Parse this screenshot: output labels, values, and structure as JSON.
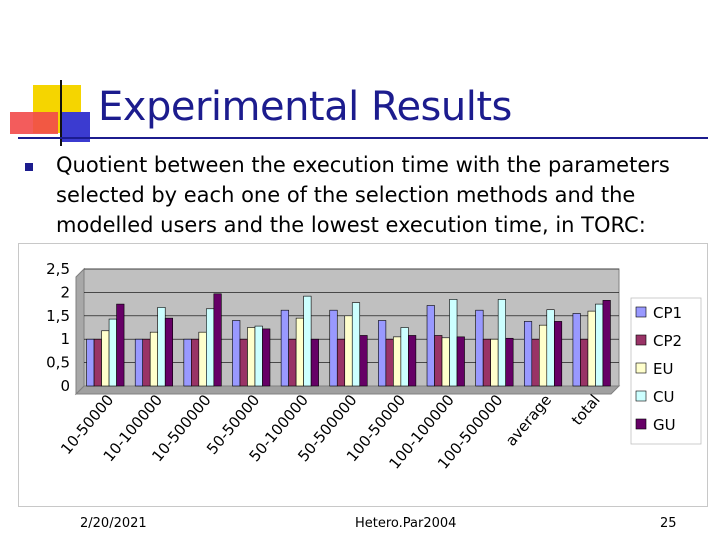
{
  "slide": {
    "title": "Experimental Results",
    "body": "Quotient between the execution time with the parameters selected by each one of the selection methods and the modelled users and the lowest execution time, in TORC:"
  },
  "footer": {
    "date": "2/20/2021",
    "center": "Hetero.Par2004",
    "page": "25"
  },
  "colors": {
    "title": "#1c1c8e",
    "plot_bg": "#c0c0c0",
    "CP1": "#9999ff",
    "CP2": "#993366",
    "EU": "#ffffcc",
    "CU": "#ccffff",
    "GU": "#660066"
  },
  "chart_data": {
    "type": "bar",
    "title": "",
    "xlabel": "",
    "ylabel": "",
    "ylim": [
      0,
      2.5
    ],
    "yticks": [
      "0",
      "0,5",
      "1",
      "1,5",
      "2",
      "2,5"
    ],
    "grid": true,
    "legend": "right",
    "categories": [
      "10-50000",
      "10-100000",
      "10-500000",
      "50-50000",
      "50-100000",
      "50-500000",
      "100-50000",
      "100-100000",
      "100-500000",
      "average",
      "total"
    ],
    "series": [
      {
        "name": "CP1",
        "values": [
          1.0,
          1.0,
          1.0,
          1.4,
          1.62,
          1.62,
          1.4,
          1.72,
          1.62,
          1.38,
          1.55
        ]
      },
      {
        "name": "CP2",
        "values": [
          1.0,
          1.0,
          1.0,
          1.0,
          1.0,
          1.0,
          1.0,
          1.08,
          1.0,
          1.0,
          1.0
        ]
      },
      {
        "name": "EU",
        "values": [
          1.18,
          1.15,
          1.15,
          1.25,
          1.45,
          1.5,
          1.05,
          1.03,
          1.0,
          1.3,
          1.6
        ]
      },
      {
        "name": "CU",
        "values": [
          1.43,
          1.68,
          1.65,
          1.28,
          1.92,
          1.78,
          1.25,
          1.85,
          1.85,
          1.63,
          1.75
        ]
      },
      {
        "name": "GU",
        "values": [
          1.75,
          1.45,
          1.97,
          1.22,
          1.0,
          1.08,
          1.08,
          1.05,
          1.02,
          1.38,
          1.83
        ]
      }
    ]
  }
}
